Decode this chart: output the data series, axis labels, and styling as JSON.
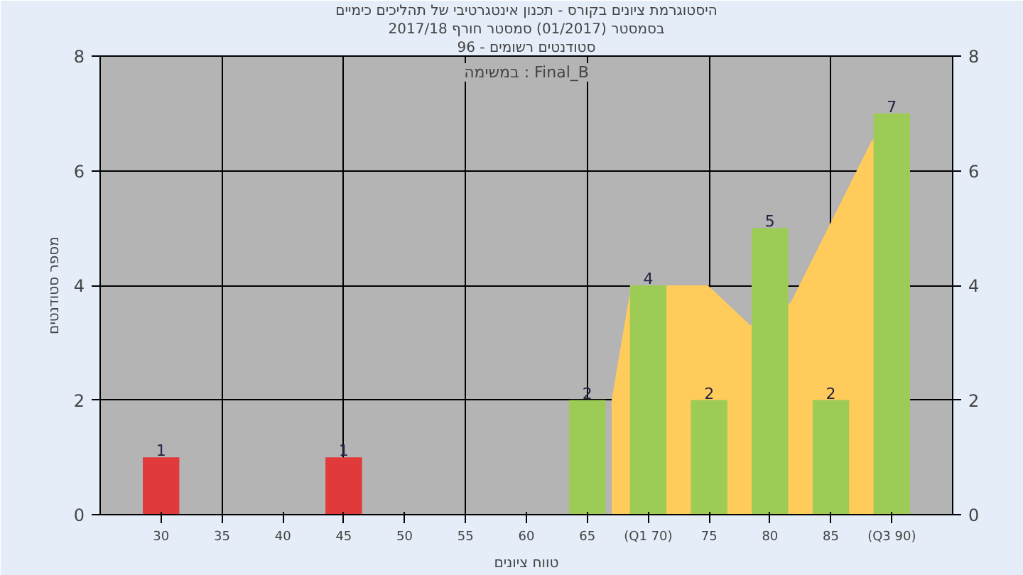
{
  "chart_data": {
    "type": "bar",
    "title": "היסטוגרמת ציונים בקורס - תכנון אינטגרטיבי של תהליכים כימיים",
    "subtitle": "בסמסטר (01/2017) סמסטר חורף 2017/18",
    "xlabel": "טווח ציונים",
    "ylabel": "מספר סטודנטים",
    "annotations": [
      "סטודנטים רשומים - 96",
      "במשימה : Final_B"
    ],
    "series": [
      {
        "type": "area",
        "color": "#ffcc5c",
        "x": [
          67,
          68.6,
          74.9,
          78.4,
          81.7,
          88.3,
          90
        ],
        "values": [
          2,
          4,
          4,
          3.3,
          3.7,
          6.5,
          7
        ]
      },
      {
        "x": [
          30,
          45,
          65,
          70,
          75,
          80,
          85,
          90
        ],
        "values": [
          1,
          1,
          2,
          4,
          2,
          5,
          2,
          7
        ],
        "value_labels": [
          "1",
          "1",
          "2",
          "4",
          "2",
          "5",
          "2",
          "7"
        ],
        "colors": [
          "#e03a3a",
          "#e03a3a",
          "#9ccc55",
          "#9ccc55",
          "#9ccc55",
          "#9ccc55",
          "#9ccc55",
          "#9ccc55"
        ]
      }
    ],
    "grid": true,
    "xlim": [
      25,
      95
    ],
    "xticks": [
      30,
      35,
      40,
      45,
      50,
      55,
      60,
      65,
      {
        "value": 70,
        "label": "(Q1 70)"
      },
      75,
      80,
      85,
      {
        "value": 90,
        "label": "(Q3 90)"
      }
    ],
    "ylim": [
      0,
      8
    ],
    "yticks": [
      0,
      2,
      4,
      6,
      8
    ],
    "y2lim": [
      0,
      8
    ],
    "y2ticks": [
      0,
      2,
      4,
      6,
      8
    ]
  }
}
